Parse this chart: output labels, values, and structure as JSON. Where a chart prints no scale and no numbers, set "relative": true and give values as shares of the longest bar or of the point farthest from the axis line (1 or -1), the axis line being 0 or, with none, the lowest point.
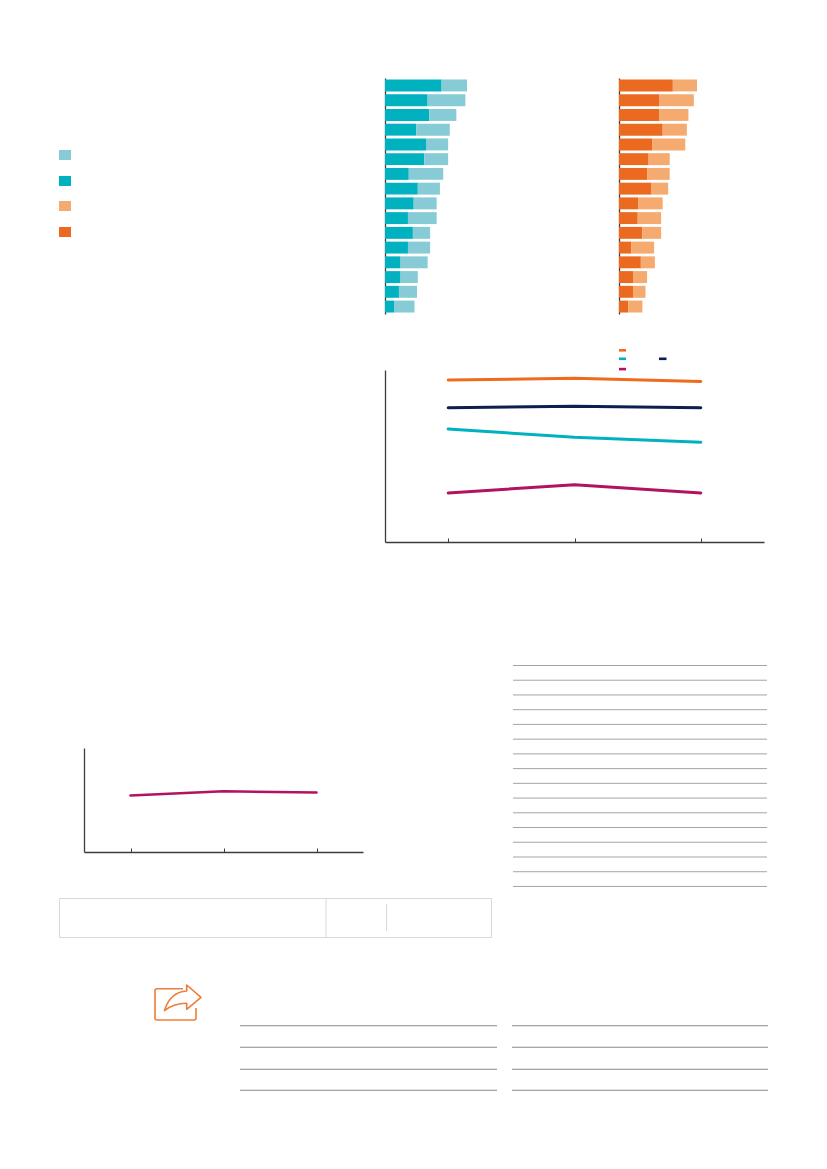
{
  "chart_data": [
    {
      "type": "bar",
      "orientation": "horizontal",
      "stacked": true,
      "relative": true,
      "categories": [
        null,
        null,
        null,
        null,
        null,
        null,
        null,
        null,
        null,
        null,
        null,
        null,
        null,
        null,
        null,
        null
      ],
      "series": [
        {
          "color": "#00b2bf",
          "values": [
            0.69,
            0.52,
            0.54,
            0.38,
            0.5,
            0.48,
            0.29,
            0.4,
            0.35,
            0.28,
            0.34,
            0.28,
            0.19,
            0.19,
            0.17,
            0.11
          ]
        },
        {
          "color": "#86cbd5",
          "values": [
            0.31,
            0.46,
            0.33,
            0.41,
            0.27,
            0.29,
            0.42,
            0.27,
            0.28,
            0.35,
            0.21,
            0.27,
            0.33,
            0.21,
            0.22,
            0.25
          ]
        }
      ]
    },
    {
      "type": "bar",
      "orientation": "horizontal",
      "stacked": true,
      "relative": true,
      "categories": [
        null,
        null,
        null,
        null,
        null,
        null,
        null,
        null,
        null,
        null,
        null,
        null,
        null,
        null,
        null,
        null
      ],
      "series": [
        {
          "color": "#ec6a20",
          "values": [
            0.69,
            0.52,
            0.52,
            0.56,
            0.43,
            0.38,
            0.36,
            0.41,
            0.25,
            0.24,
            0.3,
            0.16,
            0.28,
            0.18,
            0.18,
            0.12
          ]
        },
        {
          "color": "#f5aa70",
          "values": [
            0.31,
            0.44,
            0.37,
            0.31,
            0.42,
            0.27,
            0.29,
            0.22,
            0.31,
            0.3,
            0.24,
            0.29,
            0.18,
            0.18,
            0.16,
            0.18
          ]
        }
      ]
    },
    {
      "type": "line",
      "relative": true,
      "categories": [
        null,
        null,
        null
      ],
      "series": [
        {
          "color": "#ee6b1d",
          "values": [
            0.99,
            1,
            0.98
          ]
        },
        {
          "color": "#00b2bf",
          "values": [
            0.69,
            0.64,
            0.61
          ]
        },
        {
          "color": "#0d1f4f",
          "values": [
            0.82,
            0.83,
            0.82
          ]
        },
        {
          "color": "#b3125f",
          "values": [
            0.3,
            0.35,
            0.3
          ]
        }
      ]
    },
    {
      "type": "line",
      "relative": true,
      "categories": [
        null,
        null,
        null
      ],
      "color": "#b3125f",
      "values": [
        0.93,
        1,
        0.98
      ]
    }
  ]
}
